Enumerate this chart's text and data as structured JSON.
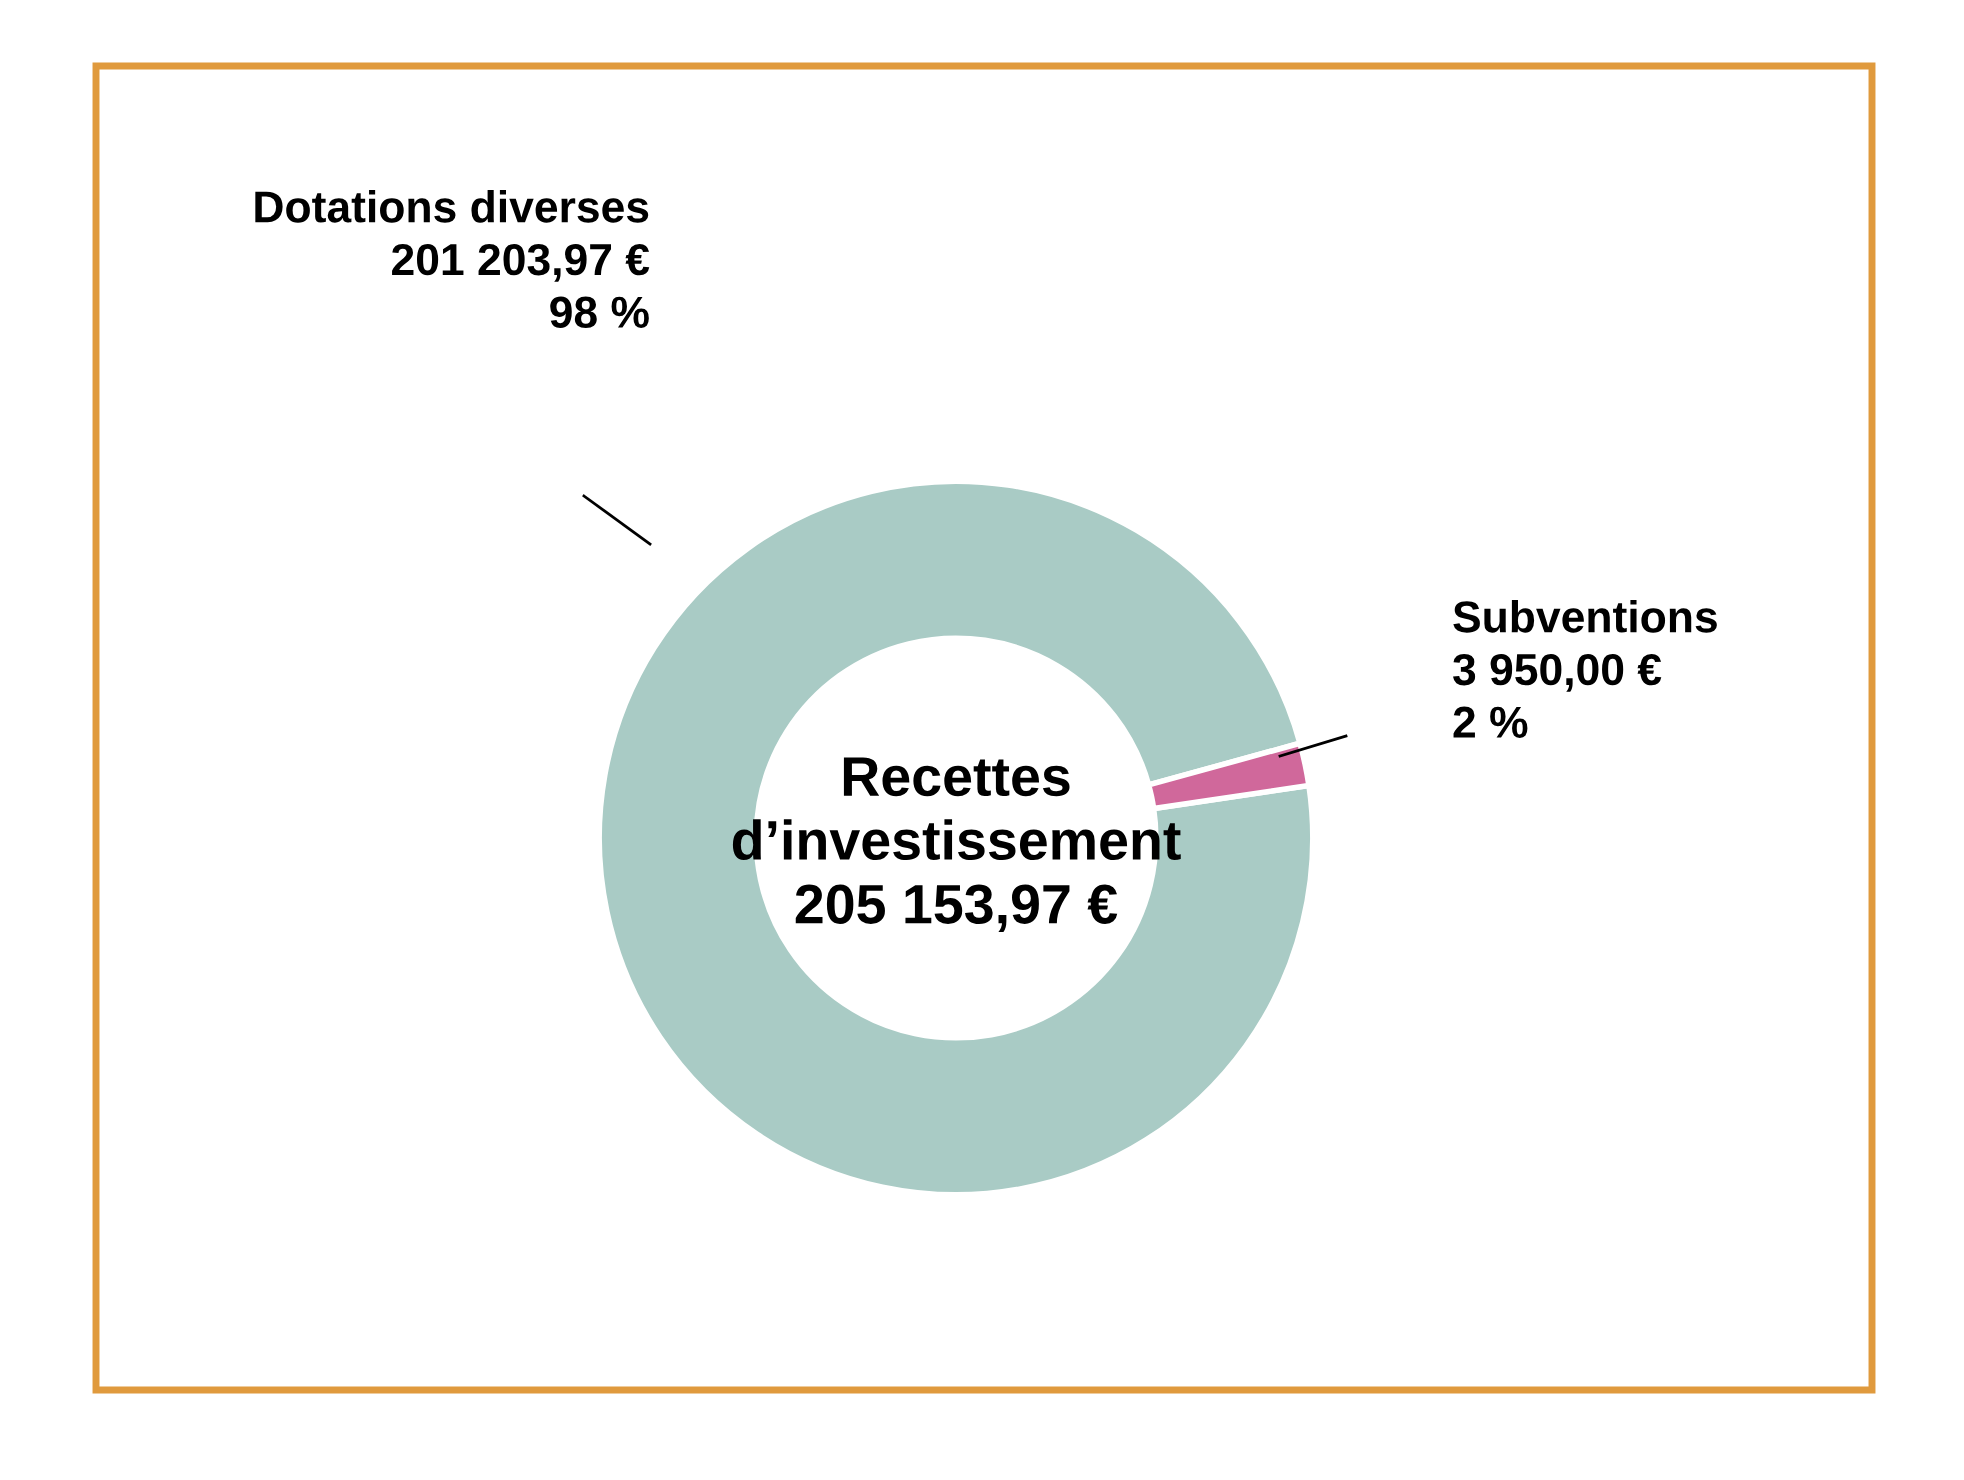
{
  "chart_data": {
    "type": "donut",
    "categories": [
      "Dotations diverses",
      "Subventions"
    ],
    "values": [
      201203.97,
      3950.0
    ],
    "value_labels": [
      "201 203,97 €\n98 %",
      "3 950,00 €\n2 %"
    ],
    "colors": [
      "#a9cbc5",
      "#d0689b"
    ],
    "annotations": [
      "Recettes\nd’investissement\n205 153,97 €"
    ]
  }
}
